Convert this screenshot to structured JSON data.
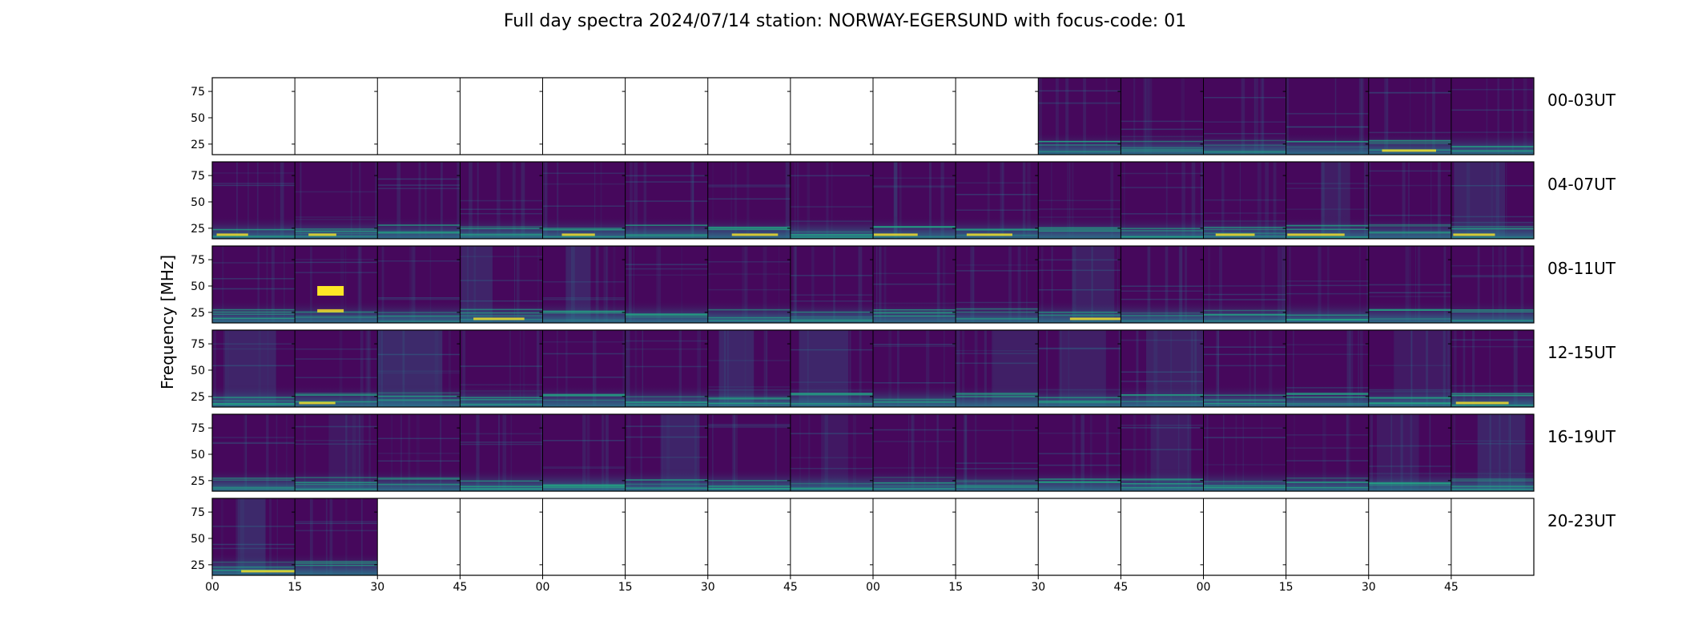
{
  "chart_data": {
    "type": "heatmap",
    "title": "Full day spectra 2024/07/14 station: NORWAY-EGERSUND with focus-code: 01",
    "ylabel": "Frequency [MHz]",
    "xlabel": "",
    "y_ticks": [
      25,
      50,
      75
    ],
    "y_tick_labels": [
      "25",
      "50",
      "75"
    ],
    "x_tick_labels": [
      "00",
      "15",
      "30",
      "45",
      "00",
      "15",
      "30",
      "45",
      "00",
      "15",
      "30",
      "45",
      "00",
      "15",
      "30",
      "45"
    ],
    "colormap": "viridis",
    "colors": {
      "low": "#440154",
      "background": "#46085c",
      "mid": "#2a788e",
      "teal": "#22a884",
      "high": "#fde725"
    },
    "rows": [
      {
        "label": "00-03UT",
        "panels_with_data": [
          10,
          11,
          12,
          13,
          14,
          15
        ]
      },
      {
        "label": "04-07UT",
        "panels_with_data": [
          0,
          1,
          2,
          3,
          4,
          5,
          6,
          7,
          8,
          9,
          10,
          11,
          12,
          13,
          14,
          15
        ]
      },
      {
        "label": "08-11UT",
        "panels_with_data": [
          0,
          1,
          2,
          3,
          4,
          5,
          6,
          7,
          8,
          9,
          10,
          11,
          12,
          13,
          14,
          15
        ]
      },
      {
        "label": "12-15UT",
        "panels_with_data": [
          0,
          1,
          2,
          3,
          4,
          5,
          6,
          7,
          8,
          9,
          10,
          11,
          12,
          13,
          14,
          15
        ]
      },
      {
        "label": "16-19UT",
        "panels_with_data": [
          0,
          1,
          2,
          3,
          4,
          5,
          6,
          7,
          8,
          9,
          10,
          11,
          12,
          13,
          14,
          15
        ]
      },
      {
        "label": "20-23UT",
        "panels_with_data": [
          0,
          1
        ]
      }
    ]
  }
}
